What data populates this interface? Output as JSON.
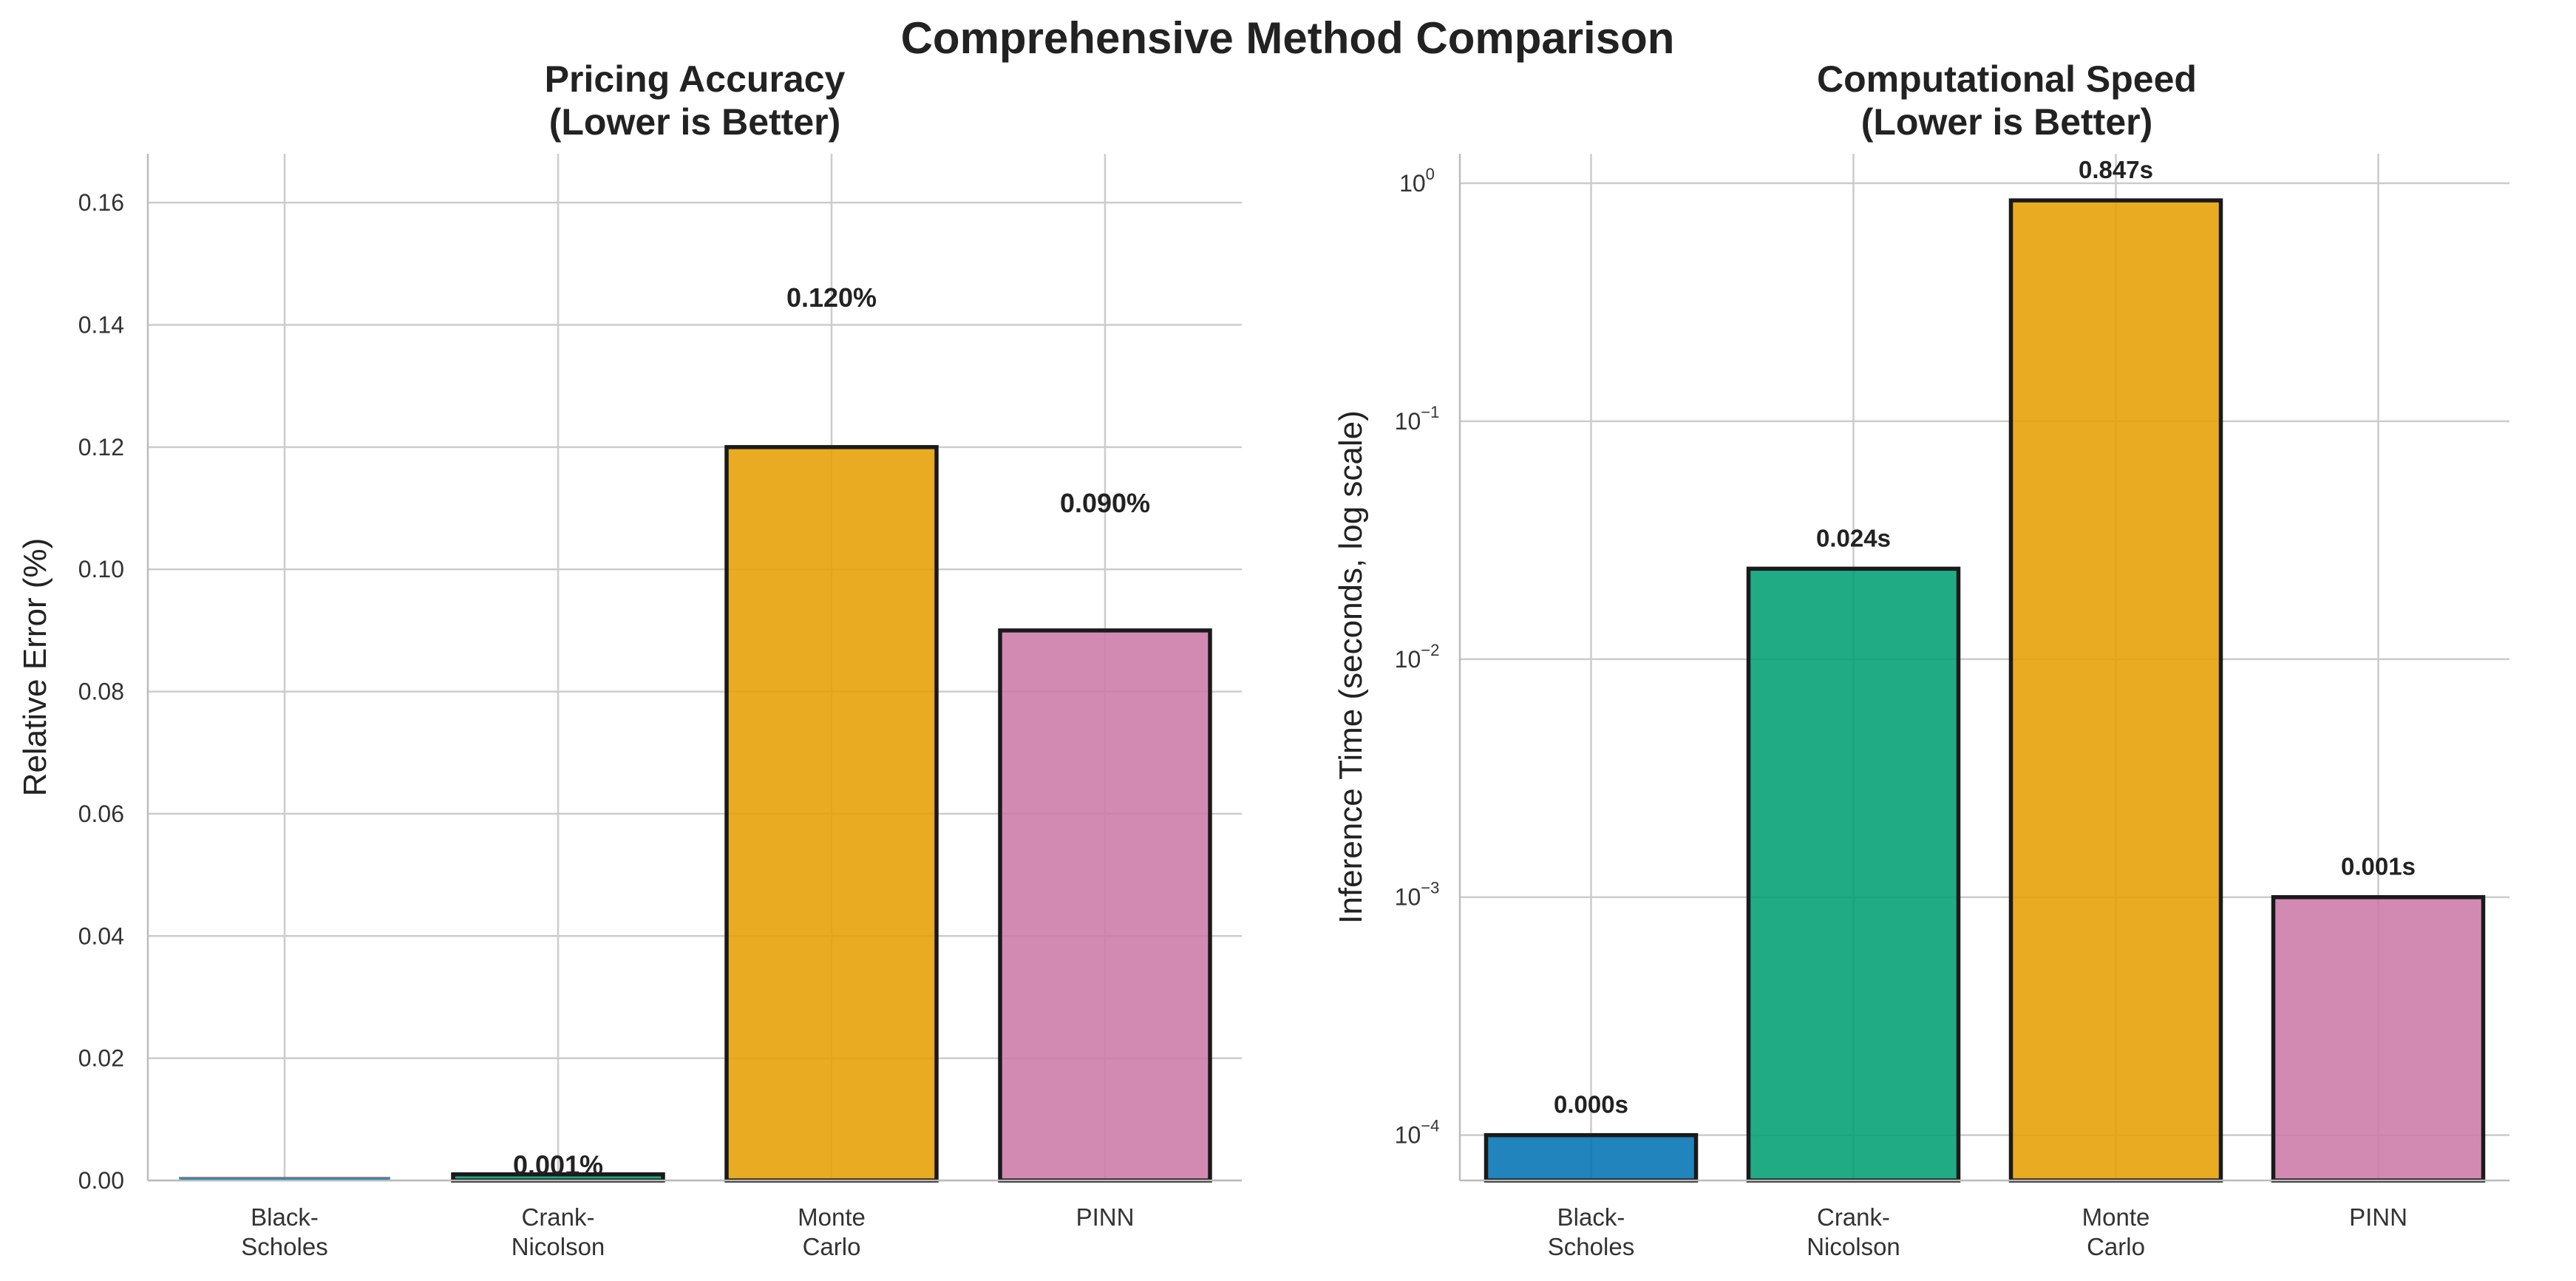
{
  "figure_title": "Comprehensive Method Comparison",
  "chart_data": [
    {
      "type": "bar",
      "title_lines": [
        "Pricing Accuracy",
        "(Lower is Better)"
      ],
      "xlabel": "",
      "ylabel": "Relative Error (%)",
      "ylim": [
        0,
        0.168
      ],
      "yscale": "linear",
      "yticks": [
        0.0,
        0.02,
        0.04,
        0.06,
        0.08,
        0.1,
        0.12,
        0.14,
        0.16
      ],
      "ytick_labels": [
        "0.00",
        "0.02",
        "0.04",
        "0.06",
        "0.08",
        "0.10",
        "0.12",
        "0.14",
        "0.16"
      ],
      "grid": true,
      "categories": [
        [
          "Black-",
          "Scholes"
        ],
        [
          "Crank-",
          "Nicolson"
        ],
        [
          "Monte",
          "Carlo"
        ],
        [
          "PINN"
        ]
      ],
      "values": [
        0.0,
        0.001,
        0.12,
        0.09
      ],
      "data_labels": [
        "",
        "0.001%",
        "0.120%",
        "0.090%"
      ],
      "colors": [
        "#0072B2",
        "#009E73",
        "#E69F00",
        "#CC79A7"
      ]
    },
    {
      "type": "bar",
      "title_lines": [
        "Computational Speed",
        "(Lower is Better)"
      ],
      "xlabel": "",
      "ylabel": "Inference Time (seconds, log scale)",
      "ylim": [
        6.45e-05,
        1.33
      ],
      "yscale": "log",
      "yticks": [
        0.0001,
        0.001,
        0.01,
        0.1,
        1
      ],
      "ytick_labels": [
        [
          "10",
          "−4"
        ],
        [
          "10",
          "−3"
        ],
        [
          "10",
          "−2"
        ],
        [
          "10",
          "−1"
        ],
        [
          "10",
          "0"
        ]
      ],
      "grid": true,
      "categories": [
        [
          "Black-",
          "Scholes"
        ],
        [
          "Crank-",
          "Nicolson"
        ],
        [
          "Monte",
          "Carlo"
        ],
        [
          "PINN"
        ]
      ],
      "values": [
        0.0001,
        0.024,
        0.847,
        0.001
      ],
      "data_labels": [
        "0.000s",
        "0.024s",
        "0.847s",
        "0.001s"
      ],
      "colors": [
        "#0072B2",
        "#009E73",
        "#E69F00",
        "#CC79A7"
      ]
    }
  ]
}
